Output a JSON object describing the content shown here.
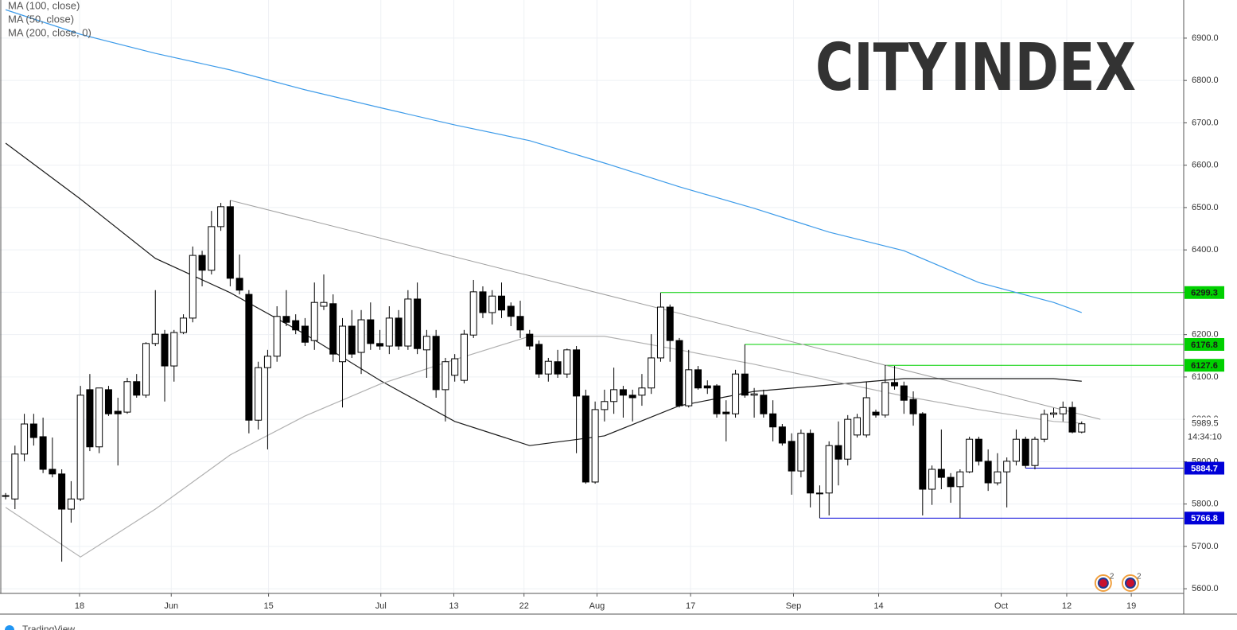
{
  "chart_data": {
    "type": "candlestick",
    "ylim": [
      5589,
      6990
    ],
    "yticks": [
      {
        "value": 5600,
        "label": "5600.0"
      },
      {
        "value": 5700,
        "label": "5700.0"
      },
      {
        "value": 5800,
        "label": "5800.0"
      },
      {
        "value": 5900,
        "label": "5900.0"
      },
      {
        "value": 6000,
        "label": "6000.0"
      },
      {
        "value": 6100,
        "label": "6100.0"
      },
      {
        "value": 6200,
        "label": "6200.0"
      },
      {
        "value": 6300,
        "label": "6300.0"
      },
      {
        "value": 6400,
        "label": "6400.0"
      },
      {
        "value": 6500,
        "label": "6500.0"
      },
      {
        "value": 6600,
        "label": "6600.0"
      },
      {
        "value": 6700,
        "label": "6700.0"
      },
      {
        "value": 6800,
        "label": "6800.0"
      },
      {
        "value": 6900,
        "label": "6900.0"
      }
    ],
    "xlim": [
      -0.6,
      125.9
    ],
    "xticks": [
      {
        "value": 7.9,
        "label": "18"
      },
      {
        "value": 17.7,
        "label": "Jun"
      },
      {
        "value": 28.1,
        "label": "15"
      },
      {
        "value": 40.1,
        "label": "Jul"
      },
      {
        "value": 47.9,
        "label": "13"
      },
      {
        "value": 55.4,
        "label": "22"
      },
      {
        "value": 63.2,
        "label": "Aug"
      },
      {
        "value": 73.2,
        "label": "17"
      },
      {
        "value": 84.2,
        "label": "Sep"
      },
      {
        "value": 93.3,
        "label": "14"
      },
      {
        "value": 106.4,
        "label": "Oct"
      },
      {
        "value": 113.4,
        "label": "12"
      },
      {
        "value": 120.3,
        "label": "19"
      }
    ],
    "grid": true,
    "up_color": "#ffffff",
    "down_color": "#000000",
    "open": [
      5818,
      5812,
      5918,
      5989,
      5959,
      5882,
      5871,
      5788,
      5812,
      6070,
      5935,
      6070,
      6019,
      6017,
      6089,
      6057,
      6179,
      6201,
      6126,
      6205,
      6239,
      6387,
      6352,
      6455,
      6502,
      6333,
      6295,
      5998,
      6122,
      6149,
      6243,
      6233,
      6220,
      6186,
      6267,
      6273,
      6136,
      6220,
      6158,
      6235,
      6179,
      6173,
      6239,
      6173,
      6284,
      6164,
      6196,
      6070,
      6104,
      6092,
      6199,
      6301,
      6252,
      6291,
      6267,
      6243,
      6201,
      6177,
      6107,
      6136,
      6107,
      6164,
      6055,
      5852,
      6023,
      6042,
      6070,
      6057,
      6057,
      6074,
      6145,
      6265,
      6186,
      6032,
      6117,
      6079,
      6079,
      6017,
      6013,
      6107,
      6057,
      6057,
      6013,
      5982,
      5948,
      5878,
      5967,
      5826,
      5826,
      5938,
      5906,
      5963,
      5963,
      6017,
      6010,
      6087,
      6079,
      6047,
      6013,
      5835,
      5882,
      5863,
      5841,
      5876,
      5953,
      5901,
      5850,
      5876,
      5901,
      5953,
      5891,
      5953,
      6012,
      6013,
      6028,
      5970
    ],
    "high": [
      5826,
      5938,
      6013,
      6013,
      6004,
      5957,
      5882,
      5854,
      6079,
      6107,
      6074,
      6079,
      6051,
      6098,
      6107,
      6182,
      6305,
      6211,
      6211,
      6248,
      6408,
      6398,
      6492,
      6511,
      6517,
      6389,
      6305,
      6136,
      6164,
      6267,
      6305,
      6248,
      6239,
      6323,
      6342,
      6295,
      6239,
      6258,
      6258,
      6276,
      6211,
      6267,
      6258,
      6305,
      6323,
      6211,
      6211,
      6145,
      6154,
      6211,
      6329,
      6314,
      6305,
      6323,
      6276,
      6280,
      6211,
      6186,
      6145,
      6164,
      6167,
      6173,
      6070,
      6042,
      6070,
      6122,
      6079,
      6070,
      6107,
      6201,
      6299,
      6271,
      6192,
      6164,
      6126,
      6092,
      6083,
      6045,
      6117,
      6177,
      6074,
      6070,
      6045,
      5989,
      5967,
      5976,
      5976,
      5844,
      5948,
      5995,
      6010,
      6013,
      6089,
      6023,
      6128,
      6126,
      6089,
      6066,
      6017,
      5891,
      5976,
      5873,
      5882,
      5959,
      5959,
      5929,
      5920,
      5910,
      5976,
      5959,
      5959,
      6023,
      6027,
      6042,
      6042,
      5995
    ],
    "low": [
      5811,
      5788,
      5901,
      5938,
      5873,
      5863,
      5664,
      5756,
      5807,
      5925,
      5920,
      6008,
      5891,
      6013,
      6051,
      6051,
      6173,
      6042,
      6089,
      6201,
      6229,
      6314,
      6342,
      6445,
      6314,
      6295,
      5967,
      5976,
      5929,
      6136,
      6220,
      6201,
      6173,
      6164,
      6258,
      6136,
      6028,
      6145,
      6107,
      6164,
      6164,
      6154,
      6164,
      6164,
      6154,
      6098,
      6051,
      5995,
      6089,
      6085,
      6192,
      6239,
      6224,
      6239,
      6220,
      6192,
      6164,
      6098,
      6089,
      6098,
      6098,
      5920,
      5848,
      5848,
      5995,
      6013,
      6004,
      5995,
      6032,
      6060,
      6136,
      6136,
      6028,
      6028,
      6070,
      6060,
      6004,
      5948,
      6004,
      6051,
      6004,
      6004,
      5948,
      5938,
      5822,
      5863,
      5792,
      5767,
      5773,
      5844,
      5891,
      5957,
      5957,
      6004,
      6004,
      6070,
      6013,
      5985,
      5773,
      5798,
      5835,
      5803,
      5767,
      5873,
      5891,
      5831,
      5844,
      5792,
      5891,
      5885,
      5882,
      5946,
      6004,
      5995,
      5967,
      5967
    ],
    "close": [
      5820,
      5918,
      5989,
      5957,
      5882,
      5871,
      5788,
      5812,
      6057,
      5935,
      6074,
      6013,
      6013,
      6089,
      6057,
      6179,
      6201,
      6126,
      6205,
      6239,
      6387,
      6352,
      6455,
      6502,
      6333,
      6305,
      5998,
      6122,
      6149,
      6243,
      6229,
      6211,
      6182,
      6276,
      6276,
      6154,
      6220,
      6154,
      6235,
      6179,
      6173,
      6239,
      6173,
      6284,
      6167,
      6196,
      6070,
      6136,
      6143,
      6201,
      6301,
      6252,
      6291,
      6258,
      6243,
      6211,
      6173,
      6107,
      6137,
      6107,
      6164,
      6055,
      5852,
      6023,
      6042,
      6070,
      6057,
      6051,
      6074,
      6145,
      6265,
      6186,
      6032,
      6117,
      6074,
      6074,
      6013,
      6013,
      6107,
      6057,
      6060,
      6013,
      5982,
      5944,
      5878,
      5967,
      5826,
      5824,
      5938,
      5906,
      6000,
      6004,
      6051,
      6010,
      6087,
      6079,
      6045,
      6013,
      5835,
      5882,
      5863,
      5841,
      5876,
      5953,
      5901,
      5850,
      5876,
      5901,
      5953,
      5891,
      5953,
      6012,
      6015,
      6028,
      5970,
      5989.5
    ],
    "series": [
      {
        "name": "MA (100, close)",
        "color": "#1a1a1a",
        "x": [
          0,
          8,
          16,
          24,
          32,
          40,
          48,
          56,
          64,
          72,
          80,
          88,
          96,
          104,
          112,
          115
        ],
        "values": [
          6652,
          6520,
          6380,
          6299,
          6201,
          6092,
          5995,
          5938,
          5961,
          6032,
          6066,
          6081,
          6096,
          6096,
          6096,
          6090
        ]
      },
      {
        "name": "MA (50, close)",
        "color": "#b0b0b0",
        "x": [
          0,
          8,
          16,
          24,
          32,
          40,
          48,
          56,
          64,
          72,
          80,
          88,
          96,
          104,
          112,
          115
        ],
        "values": [
          5792,
          5675,
          5788,
          5916,
          6008,
          6083,
          6141,
          6196,
          6196,
          6164,
          6130,
          6092,
          6055,
          6023,
          5995,
          5991
        ]
      },
      {
        "name": "MA (200, close, 0)",
        "color": "#3d9be9",
        "x": [
          0,
          8,
          16,
          24,
          32,
          40,
          48,
          56,
          64,
          72,
          80,
          88,
          96,
          104,
          112,
          115
        ],
        "values": [
          6967,
          6909,
          6864,
          6825,
          6778,
          6736,
          6695,
          6658,
          6605,
          6549,
          6498,
          6442,
          6398,
          6323,
          6276,
          6252
        ]
      }
    ],
    "trendline": {
      "color": "#9e9e9e",
      "x": [
        24,
        117
      ],
      "values": [
        6517,
        6000
      ]
    },
    "levels": [
      {
        "value": 6299.3,
        "x_start": 70,
        "color": "#00d000",
        "text_color": "#1a1a1a"
      },
      {
        "value": 6176.8,
        "x_start": 79,
        "color": "#00d000",
        "text_color": "#1a1a1a"
      },
      {
        "value": 6127.6,
        "x_start": 94,
        "color": "#00d000",
        "text_color": "#1a1a1a"
      },
      {
        "value": 5884.7,
        "x_start": 109,
        "color": "#0000d8",
        "text_color": "#ffffff"
      },
      {
        "value": 5766.8,
        "x_start": 87,
        "color": "#0000d8",
        "text_color": "#ffffff"
      }
    ],
    "last_price": 5989.5,
    "countdown": "14:34:10",
    "event_markers": [
      {
        "x": 117.3,
        "label": "2"
      },
      {
        "x": 120.2,
        "label": "2"
      }
    ]
  },
  "watermark": [
    {
      "text": "CITY",
      "color": "#111111"
    },
    {
      "text": "INDEX",
      "color": "#f5d300"
    }
  ],
  "footer": "TradingView"
}
